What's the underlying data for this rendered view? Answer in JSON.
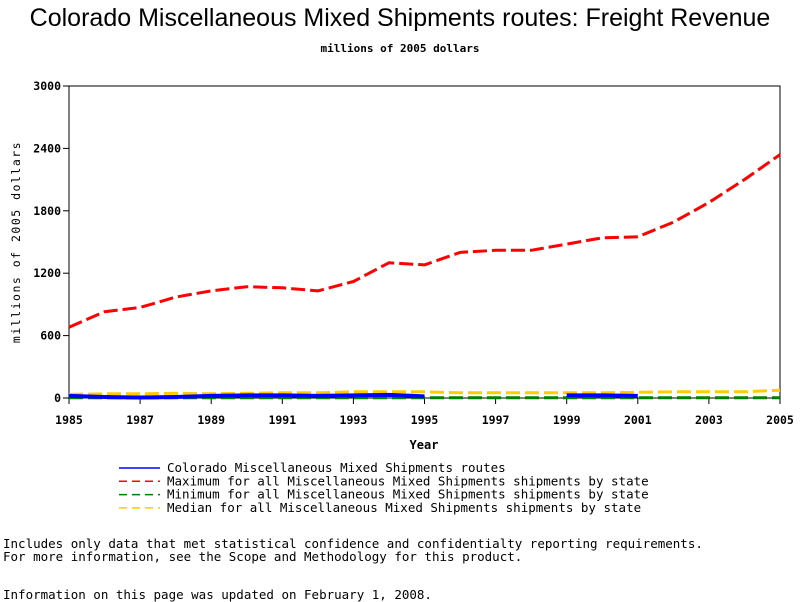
{
  "chart_data": {
    "type": "line",
    "title": "Colorado Miscellaneous Mixed Shipments routes: Freight Revenue",
    "subtitle": "millions of 2005 dollars",
    "xlabel": "Year",
    "ylabel": "millions of 2005 dollars",
    "ylim": [
      0,
      3000
    ],
    "xlim": [
      1985,
      2005
    ],
    "yticks": [
      0,
      600,
      1200,
      1800,
      2400,
      3000
    ],
    "xticks": [
      1985,
      1987,
      1989,
      1991,
      1993,
      1995,
      1997,
      1999,
      2001,
      2003,
      2005
    ],
    "x": [
      1985,
      1986,
      1987,
      1988,
      1989,
      1990,
      1991,
      1992,
      1993,
      1994,
      1995,
      1996,
      1997,
      1998,
      1999,
      2000,
      2001,
      2002,
      2003,
      2004,
      2005
    ],
    "series": [
      {
        "name": "Colorado Miscellaneous Mixed Shipments routes",
        "color": "#0000ff",
        "dash": "solid",
        "width": 4,
        "values": [
          20,
          10,
          5,
          10,
          20,
          25,
          25,
          20,
          25,
          30,
          15,
          null,
          null,
          null,
          25,
          25,
          20,
          null,
          null,
          null,
          null
        ]
      },
      {
        "name": "Maximum for all Miscellaneous Mixed Shipments shipments by state",
        "color": "#ff0000",
        "dash": "dashed",
        "width": 3,
        "values": [
          680,
          830,
          870,
          970,
          1030,
          1070,
          1060,
          1030,
          1120,
          1300,
          1280,
          1400,
          1420,
          1420,
          1480,
          1540,
          1550,
          1690,
          1880,
          2100,
          2340
        ]
      },
      {
        "name": "Minimum for all Miscellaneous Mixed Shipments shipments by state",
        "color": "#008000",
        "dash": "dashed",
        "width": 3,
        "values": [
          3,
          3,
          3,
          3,
          3,
          3,
          3,
          3,
          3,
          3,
          3,
          3,
          3,
          3,
          3,
          3,
          3,
          3,
          3,
          3,
          3
        ]
      },
      {
        "name": "Median for all Miscellaneous Mixed Shipments shipments by state",
        "color": "#ffcc00",
        "dash": "dashed",
        "width": 3,
        "values": [
          35,
          40,
          40,
          45,
          40,
          45,
          50,
          50,
          60,
          60,
          60,
          50,
          50,
          50,
          50,
          50,
          55,
          60,
          60,
          60,
          75
        ]
      }
    ],
    "legend_position": "bottom"
  },
  "notes": {
    "line1": "Includes only data that met statistical confidence and confidentialty reporting requirements.",
    "line2": "For more information, see the Scope and Methodology for this product.",
    "updated": "Information on this page was updated on February 1, 2008."
  }
}
